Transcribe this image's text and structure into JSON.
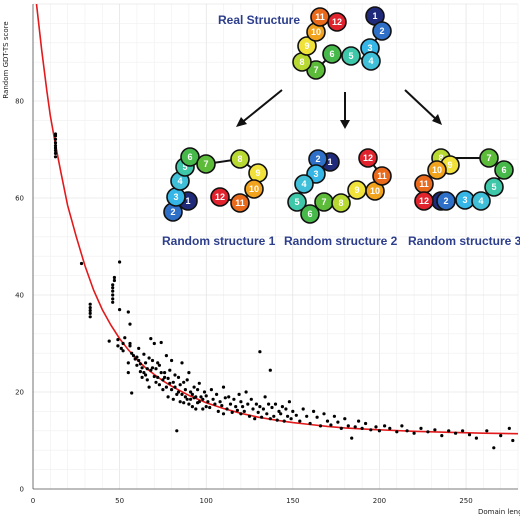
{
  "chart_data": {
    "type": "scatter",
    "xlabel": "Domain length",
    "ylabel": "Random GDT-TS score",
    "xlim": [
      0,
      280
    ],
    "ylim": [
      0,
      100
    ],
    "x_ticks": [
      "0",
      "50",
      "100",
      "150",
      "200",
      "250"
    ],
    "y_ticks": [
      "0",
      "20",
      "40",
      "60",
      "80"
    ],
    "grid": true,
    "series": [
      {
        "kind": "points",
        "color": "#000000",
        "points": [
          [
            13,
            68.5
          ],
          [
            13,
            69.2
          ],
          [
            13,
            69.8
          ],
          [
            13,
            70.3
          ],
          [
            13,
            70.8
          ],
          [
            13,
            71.4
          ],
          [
            13,
            72.1
          ],
          [
            13,
            72.8
          ],
          [
            13,
            73.2
          ],
          [
            28,
            46.5
          ],
          [
            33,
            35.5
          ],
          [
            33,
            36.2
          ],
          [
            33,
            36.8
          ],
          [
            33,
            37.4
          ],
          [
            33,
            38.1
          ],
          [
            44,
            30.5
          ],
          [
            46,
            38.5
          ],
          [
            46,
            39.2
          ],
          [
            46,
            40.0
          ],
          [
            46,
            40.8
          ],
          [
            46,
            41.5
          ],
          [
            46,
            42.1
          ],
          [
            47,
            43.0
          ],
          [
            47,
            43.6
          ],
          [
            49,
            29.5
          ],
          [
            49,
            30.8
          ],
          [
            50,
            37.0
          ],
          [
            50,
            46.8
          ],
          [
            51,
            29.0
          ],
          [
            52,
            28.5
          ],
          [
            52,
            30.0
          ],
          [
            53,
            31.2
          ],
          [
            55,
            24.0
          ],
          [
            55,
            26.0
          ],
          [
            55,
            36.5
          ],
          [
            56,
            30.0
          ],
          [
            56,
            34.0
          ],
          [
            56,
            29.5
          ],
          [
            57,
            19.8
          ],
          [
            57,
            28.0
          ],
          [
            58,
            27.5
          ],
          [
            59,
            26.8
          ],
          [
            60,
            27.2
          ],
          [
            60,
            25.5
          ],
          [
            61,
            29.0
          ],
          [
            61,
            26.5
          ],
          [
            62,
            24.2
          ],
          [
            62,
            25.8
          ],
          [
            63,
            23.0
          ],
          [
            63,
            25.0
          ],
          [
            64,
            27.8
          ],
          [
            64,
            24.0
          ],
          [
            65,
            23.5
          ],
          [
            65,
            26.0
          ],
          [
            66,
            24.8
          ],
          [
            66,
            22.5
          ],
          [
            67,
            27.0
          ],
          [
            67,
            21.0
          ],
          [
            68,
            24.5
          ],
          [
            68,
            31.0
          ],
          [
            69,
            26.5
          ],
          [
            69,
            25.0
          ],
          [
            70,
            23.2
          ],
          [
            70,
            30.0
          ],
          [
            71,
            22.0
          ],
          [
            71,
            24.8
          ],
          [
            72,
            26.0
          ],
          [
            72,
            23.0
          ],
          [
            73,
            21.5
          ],
          [
            73,
            25.5
          ],
          [
            74,
            24.0
          ],
          [
            74,
            30.2
          ],
          [
            75,
            22.5
          ],
          [
            75,
            20.5
          ],
          [
            76,
            24.0
          ],
          [
            76,
            23.0
          ],
          [
            77,
            21.0
          ],
          [
            77,
            27.5
          ],
          [
            78,
            22.8
          ],
          [
            78,
            19.0
          ],
          [
            79,
            24.5
          ],
          [
            79,
            21.8
          ],
          [
            80,
            20.5
          ],
          [
            80,
            26.5
          ],
          [
            81,
            22.0
          ],
          [
            81,
            18.5
          ],
          [
            82,
            23.5
          ],
          [
            82,
            21.0
          ],
          [
            83,
            12.0
          ],
          [
            83,
            19.5
          ],
          [
            84,
            23.0
          ],
          [
            84,
            20.0
          ],
          [
            85,
            21.5
          ],
          [
            85,
            18.0
          ],
          [
            86,
            26.0
          ],
          [
            86,
            19.5
          ],
          [
            87,
            22.0
          ],
          [
            87,
            17.8
          ],
          [
            88,
            20.5
          ],
          [
            88,
            19.0
          ],
          [
            89,
            22.5
          ],
          [
            89,
            18.5
          ],
          [
            90,
            17.5
          ],
          [
            90,
            24.0
          ],
          [
            91,
            20.0
          ],
          [
            91,
            18.5
          ],
          [
            92,
            19.5
          ],
          [
            92,
            17.0
          ],
          [
            93,
            21.0
          ],
          [
            93,
            18.8
          ],
          [
            94,
            19.0
          ],
          [
            94,
            16.5
          ],
          [
            95,
            17.8
          ],
          [
            95,
            20.5
          ],
          [
            96,
            21.8
          ],
          [
            96,
            18.0
          ],
          [
            97,
            19.0
          ],
          [
            98,
            16.5
          ],
          [
            98,
            18.5
          ],
          [
            99,
            20.0
          ],
          [
            100,
            17.0
          ],
          [
            100,
            19.2
          ],
          [
            101,
            18.0
          ],
          [
            102,
            16.8
          ],
          [
            103,
            20.5
          ],
          [
            104,
            18.5
          ],
          [
            105,
            17.5
          ],
          [
            106,
            19.5
          ],
          [
            107,
            16.0
          ],
          [
            108,
            18.0
          ],
          [
            109,
            17.2
          ],
          [
            110,
            21.0
          ],
          [
            110,
            15.5
          ],
          [
            111,
            18.8
          ],
          [
            112,
            16.5
          ],
          [
            113,
            19.0
          ],
          [
            114,
            17.5
          ],
          [
            115,
            15.8
          ],
          [
            116,
            18.5
          ],
          [
            117,
            17.0
          ],
          [
            118,
            16.2
          ],
          [
            119,
            19.5
          ],
          [
            120,
            15.5
          ],
          [
            120,
            18.0
          ],
          [
            121,
            17.0
          ],
          [
            122,
            16.0
          ],
          [
            123,
            20.0
          ],
          [
            124,
            17.5
          ],
          [
            125,
            15.0
          ],
          [
            126,
            18.5
          ],
          [
            127,
            16.5
          ],
          [
            128,
            14.5
          ],
          [
            129,
            17.5
          ],
          [
            130,
            15.8
          ],
          [
            131,
            28.3
          ],
          [
            131,
            17.0
          ],
          [
            132,
            14.8
          ],
          [
            133,
            16.5
          ],
          [
            134,
            19.0
          ],
          [
            135,
            15.5
          ],
          [
            136,
            17.5
          ],
          [
            137,
            24.5
          ],
          [
            137,
            14.5
          ],
          [
            138,
            16.8
          ],
          [
            139,
            15.0
          ],
          [
            140,
            17.5
          ],
          [
            141,
            14.2
          ],
          [
            142,
            16.0
          ],
          [
            143,
            15.5
          ],
          [
            144,
            17.0
          ],
          [
            145,
            14.0
          ],
          [
            146,
            16.5
          ],
          [
            147,
            15.0
          ],
          [
            148,
            18.0
          ],
          [
            149,
            14.5
          ],
          [
            150,
            16.0
          ],
          [
            152,
            15.2
          ],
          [
            154,
            14.0
          ],
          [
            156,
            16.5
          ],
          [
            158,
            15.0
          ],
          [
            160,
            13.5
          ],
          [
            162,
            16.0
          ],
          [
            164,
            14.8
          ],
          [
            166,
            13.0
          ],
          [
            168,
            15.5
          ],
          [
            170,
            14.0
          ],
          [
            172,
            13.2
          ],
          [
            174,
            15.0
          ],
          [
            176,
            13.8
          ],
          [
            178,
            12.5
          ],
          [
            180,
            14.5
          ],
          [
            182,
            13.0
          ],
          [
            184,
            10.5
          ],
          [
            186,
            12.8
          ],
          [
            188,
            14.0
          ],
          [
            190,
            12.5
          ],
          [
            192,
            13.5
          ],
          [
            195,
            12.2
          ],
          [
            198,
            12.8
          ],
          [
            200,
            12.0
          ],
          [
            203,
            13.0
          ],
          [
            206,
            12.5
          ],
          [
            210,
            11.8
          ],
          [
            213,
            13.0
          ],
          [
            216,
            12.0
          ],
          [
            220,
            11.5
          ],
          [
            224,
            12.5
          ],
          [
            228,
            11.8
          ],
          [
            232,
            12.2
          ],
          [
            236,
            11.0
          ],
          [
            240,
            12.0
          ],
          [
            244,
            11.5
          ],
          [
            248,
            12.0
          ],
          [
            252,
            11.2
          ],
          [
            256,
            10.5
          ],
          [
            262,
            12.0
          ],
          [
            266,
            8.5
          ],
          [
            270,
            11.0
          ],
          [
            275,
            12.5
          ],
          [
            277,
            10.0
          ]
        ]
      },
      {
        "kind": "fit",
        "color": "#e31a1c",
        "points": [
          [
            2,
            100
          ],
          [
            5,
            90.5
          ],
          [
            8,
            82
          ],
          [
            10,
            77
          ],
          [
            13,
            71
          ],
          [
            16,
            65.5
          ],
          [
            20,
            58.5
          ],
          [
            25,
            52
          ],
          [
            30,
            46
          ],
          [
            35,
            41
          ],
          [
            40,
            37
          ],
          [
            45,
            33.8
          ],
          [
            50,
            31
          ],
          [
            55,
            28.7
          ],
          [
            60,
            26.7
          ],
          [
            65,
            25
          ],
          [
            70,
            23.6
          ],
          [
            75,
            22.3
          ],
          [
            80,
            21.2
          ],
          [
            90,
            19.3
          ],
          [
            100,
            17.8
          ],
          [
            110,
            16.6
          ],
          [
            120,
            15.6
          ],
          [
            130,
            14.8
          ],
          [
            140,
            14.2
          ],
          [
            150,
            13.7
          ],
          [
            160,
            13.3
          ],
          [
            170,
            12.9
          ],
          [
            180,
            12.6
          ],
          [
            190,
            12.4
          ],
          [
            200,
            12.2
          ],
          [
            220,
            11.9
          ],
          [
            240,
            11.7
          ],
          [
            260,
            11.5
          ],
          [
            280,
            11.4
          ]
        ]
      }
    ],
    "annotations": {
      "real_structure": "Real Structure",
      "random_1": "Random structure 1",
      "random_2": "Random structure 2",
      "random_3": "Random structure 3"
    },
    "bead_colors": {
      "1": "#1f2a7a",
      "2": "#2e6fc8",
      "3": "#35b6e6",
      "4": "#3fbfd8",
      "5": "#3ec7a8",
      "6": "#47b94a",
      "7": "#5dbb3a",
      "8": "#b8d832",
      "9": "#f0e23a",
      "10": "#f2a31e",
      "11": "#ea6a1c",
      "12": "#e0232c"
    }
  }
}
